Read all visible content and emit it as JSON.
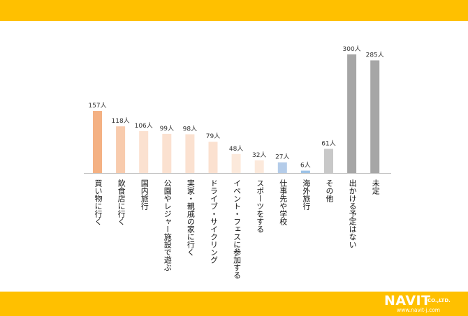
{
  "chart_data": {
    "type": "bar",
    "title": "",
    "xlabel": "",
    "ylabel": "",
    "ylim": [
      0,
      300
    ],
    "unit": "人",
    "categories": [
      "買い物に行く",
      "飲食店に行く",
      "国内旅行",
      "公園やレジャー施設で遊ぶ",
      "実家・親戚の家に行く",
      "ドライブ・サイクリング",
      "イベント・フェスに参加する",
      "スポーツをする",
      "仕事先や学校",
      "海外旅行",
      "その他",
      "出かける予定はない",
      "未定"
    ],
    "values": [
      157,
      118,
      106,
      99,
      98,
      79,
      48,
      32,
      27,
      6,
      61,
      300,
      285
    ],
    "value_labels": [
      "157人",
      "118人",
      "106人",
      "99人",
      "98人",
      "79人",
      "48人",
      "32人",
      "27人",
      "6人",
      "61人",
      "300人",
      "285人"
    ],
    "colors": [
      "#f4b183",
      "#f8cbad",
      "#fbe1d0",
      "#fbe1d0",
      "#fbe1d0",
      "#fbe1d0",
      "#fce9db",
      "#fce9db",
      "#b4cce9",
      "#9dc3e6",
      "#c8c8c8",
      "#a6a6a6",
      "#a6a6a6"
    ]
  },
  "brand": {
    "name": "NAVIT",
    "suffix": "CO.,LTD.",
    "url": "www.navit-j.com",
    "band_color": "#ffc000"
  }
}
